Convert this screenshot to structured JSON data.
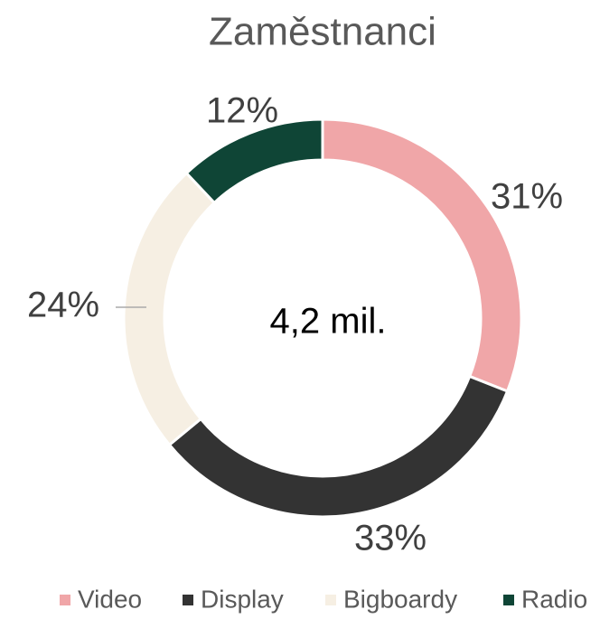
{
  "chart_data": {
    "type": "donut",
    "title": "Zaměstnanci",
    "categories": [
      "Video",
      "Display",
      "Bigboardy",
      "Radio"
    ],
    "values": [
      31,
      33,
      24,
      12
    ],
    "value_labels": [
      "31%",
      "33%",
      "24%",
      "12%"
    ],
    "colors": [
      "#f0a6a8",
      "#333333",
      "#f6efe3",
      "#0f4536"
    ],
    "center_label": "4,2 mil.",
    "legend": "bottom"
  }
}
